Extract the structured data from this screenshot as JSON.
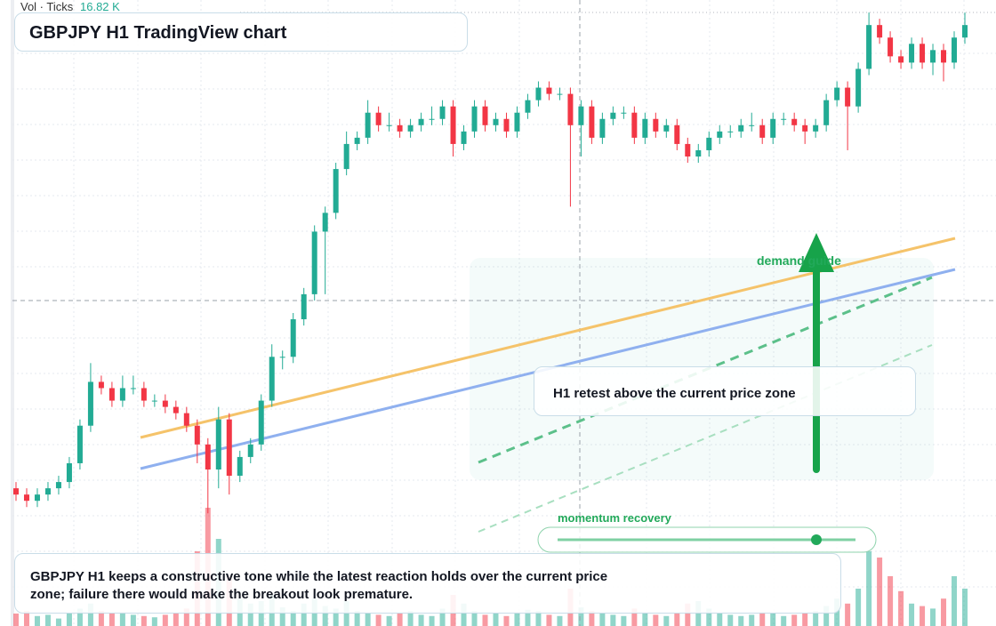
{
  "chart_data": {
    "type": "candlestick",
    "title": "GBPJPY H1 TradingView chart",
    "volume_label": "Vol · Ticks",
    "volume_value": "16.82 K",
    "annotation": "H1 retest above the current price zone",
    "guide_label": "demand guide",
    "slider_label": "momentum recovery",
    "summary": "GBPJPY H1 keeps a constructive tone while the latest reaction holds over the current price zone; failure there would make the breakout look premature.",
    "up_color": "#22ab94",
    "down_color": "#f23645",
    "ylim": [
      0,
      100
    ],
    "vlim": [
      0,
      100
    ],
    "open": [
      22,
      21,
      20,
      21,
      22,
      23,
      26,
      32,
      39,
      38,
      36,
      38,
      38,
      36,
      36,
      35,
      34,
      32,
      29,
      25,
      33,
      24,
      27,
      29,
      36,
      43,
      43,
      49,
      53,
      63,
      66,
      73,
      77,
      78,
      82,
      80,
      80,
      79,
      80,
      81,
      81,
      83,
      77,
      79,
      83,
      80,
      81,
      79,
      82,
      84,
      86,
      85,
      85,
      80,
      83,
      78,
      81,
      82,
      82,
      78,
      81,
      79,
      80,
      77,
      75,
      76,
      78,
      79,
      79,
      80,
      80,
      78,
      81,
      81,
      80,
      79,
      80,
      84,
      86,
      83,
      89,
      96,
      94,
      91,
      90,
      93,
      90,
      92,
      90,
      94
    ],
    "high": [
      23,
      22,
      22,
      23,
      24,
      27,
      33,
      42,
      40,
      39,
      40,
      40,
      39,
      37,
      37,
      36,
      35,
      33,
      30,
      35,
      34,
      28,
      30,
      37,
      45,
      44,
      50,
      54,
      64,
      67,
      74,
      79,
      79,
      84,
      83,
      82,
      81,
      81,
      82,
      83,
      84,
      84,
      80,
      84,
      84,
      82,
      82,
      83,
      85,
      87,
      87,
      86,
      86,
      84,
      84,
      82,
      83,
      83,
      83,
      82,
      82,
      81,
      81,
      78,
      77,
      79,
      80,
      80,
      81,
      82,
      81,
      82,
      82,
      82,
      81,
      81,
      85,
      87,
      87,
      90,
      98,
      97,
      95,
      92,
      94,
      94,
      93,
      93,
      95,
      98
    ],
    "low": [
      20,
      19,
      19,
      20,
      21,
      22,
      25,
      31,
      37,
      35,
      35,
      37,
      35,
      35,
      34,
      33,
      31,
      26,
      18,
      22,
      21,
      23,
      26,
      28,
      35,
      41,
      42,
      48,
      52,
      53,
      65,
      72,
      76,
      77,
      79,
      79,
      78,
      78,
      79,
      80,
      80,
      75,
      76,
      78,
      79,
      79,
      78,
      78,
      81,
      83,
      84,
      84,
      67,
      75,
      77,
      77,
      80,
      81,
      77,
      77,
      78,
      78,
      76,
      74,
      74,
      75,
      77,
      78,
      78,
      79,
      77,
      77,
      80,
      79,
      77,
      78,
      79,
      83,
      76,
      82,
      88,
      93,
      90,
      89,
      89,
      89,
      88,
      87,
      89,
      93
    ],
    "close": [
      21,
      20,
      21,
      22,
      23,
      26,
      32,
      39,
      38,
      36,
      38,
      38,
      36,
      36,
      35,
      34,
      32,
      29,
      25,
      33,
      24,
      27,
      29,
      36,
      43,
      43,
      49,
      53,
      63,
      66,
      73,
      77,
      78,
      82,
      80,
      80,
      79,
      80,
      81,
      81,
      83,
      77,
      79,
      83,
      80,
      81,
      79,
      82,
      84,
      86,
      85,
      85,
      80,
      83,
      78,
      81,
      82,
      82,
      78,
      81,
      79,
      80,
      77,
      75,
      76,
      78,
      79,
      79,
      80,
      80,
      78,
      81,
      81,
      80,
      79,
      80,
      84,
      86,
      83,
      89,
      96,
      94,
      91,
      90,
      93,
      90,
      92,
      90,
      94,
      96
    ],
    "volume": [
      10,
      12,
      8,
      9,
      6,
      10,
      14,
      18,
      12,
      10,
      11,
      9,
      8,
      7,
      9,
      10,
      14,
      60,
      95,
      70,
      40,
      22,
      18,
      20,
      25,
      15,
      12,
      18,
      22,
      16,
      14,
      20,
      12,
      10,
      9,
      8,
      10,
      12,
      9,
      8,
      14,
      25,
      18,
      12,
      9,
      10,
      8,
      11,
      13,
      12,
      9,
      8,
      30,
      15,
      12,
      10,
      9,
      8,
      14,
      11,
      9,
      8,
      10,
      18,
      20,
      14,
      10,
      9,
      8,
      9,
      11,
      10,
      8,
      9,
      10,
      12,
      16,
      22,
      18,
      30,
      60,
      55,
      40,
      28,
      18,
      16,
      14,
      22,
      40,
      30
    ]
  }
}
